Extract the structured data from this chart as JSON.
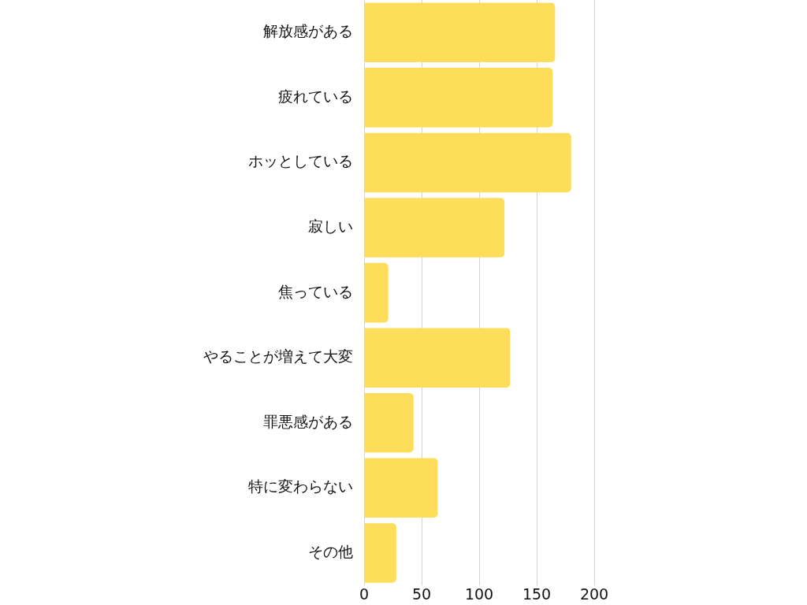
{
  "chart_data": {
    "type": "bar",
    "orientation": "horizontal",
    "categories": [
      "解放感がある",
      "疲れている",
      "ホッとしている",
      "寂しい",
      "焦っている",
      "やることが増えて大変",
      "罪悪感がある",
      "特に変わらない",
      "その他"
    ],
    "values": [
      166,
      164,
      180,
      122,
      21,
      127,
      43,
      64,
      28
    ],
    "color": "#fedd5b",
    "xlim": [
      0,
      200
    ],
    "xticks": [
      0,
      50,
      100,
      150,
      200
    ],
    "grid": "x"
  }
}
